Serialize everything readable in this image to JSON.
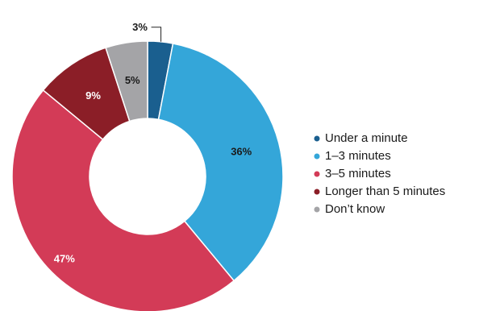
{
  "chart_data": {
    "type": "pie",
    "donut": true,
    "title": "",
    "categories": [
      "Under a minute",
      "1–3 minutes",
      "3–5 minutes",
      "Longer than 5 minutes",
      "Don’t know"
    ],
    "values": [
      3,
      36,
      47,
      9,
      5
    ],
    "labels": [
      "3%",
      "36%",
      "47%",
      "9%",
      "5%"
    ],
    "colors": [
      "#1a5f8f",
      "#34a6d9",
      "#d33b57",
      "#8b1e27",
      "#a4a4a7"
    ],
    "label_colors": [
      "#1a1a1a",
      "#1a1a1a",
      "#ffffff",
      "#ffffff",
      "#1a1a1a"
    ],
    "legend": {
      "position": "right",
      "entries": [
        "Under a minute",
        "1–3 minutes",
        "3–5 minutes",
        "Longer than 5 minutes",
        "Don’t know"
      ]
    }
  }
}
